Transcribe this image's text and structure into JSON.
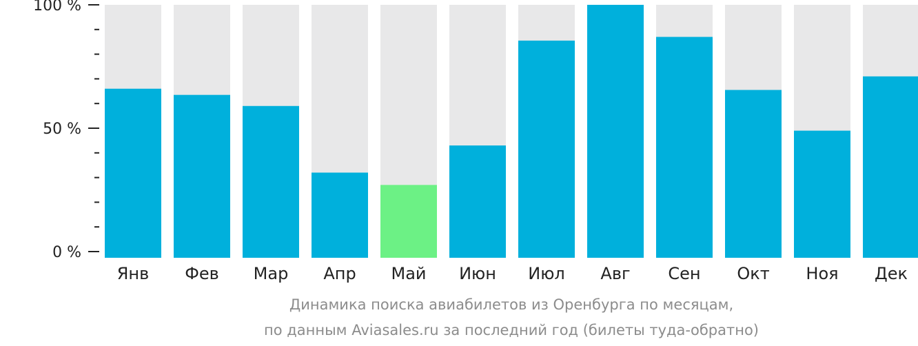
{
  "chart_data": {
    "type": "bar",
    "categories": [
      "Янв",
      "Фев",
      "Мар",
      "Апр",
      "Май",
      "Июн",
      "Июл",
      "Авг",
      "Сен",
      "Окт",
      "Ноя",
      "Дек"
    ],
    "values": [
      66,
      63.5,
      59,
      32,
      27,
      43,
      85.5,
      100,
      87,
      65.5,
      49,
      71
    ],
    "highlight_index": 4,
    "ylim": [
      0,
      100
    ],
    "yticks": [
      {
        "value": 0,
        "label": "0 %"
      },
      {
        "value": 50,
        "label": "50 %"
      },
      {
        "value": 100,
        "label": "100 %"
      }
    ],
    "minor_tick_step": 10,
    "caption": [
      "Динамика поиска авиабилетов из Оренбурга по месяцам,",
      "по данным Aviasales.ru за последний год (билеты туда-обратно)"
    ],
    "colors": {
      "bar": "#00b0dc",
      "highlight": "#6cf185",
      "track": "#e8e8e9",
      "axis": "#222222"
    }
  }
}
